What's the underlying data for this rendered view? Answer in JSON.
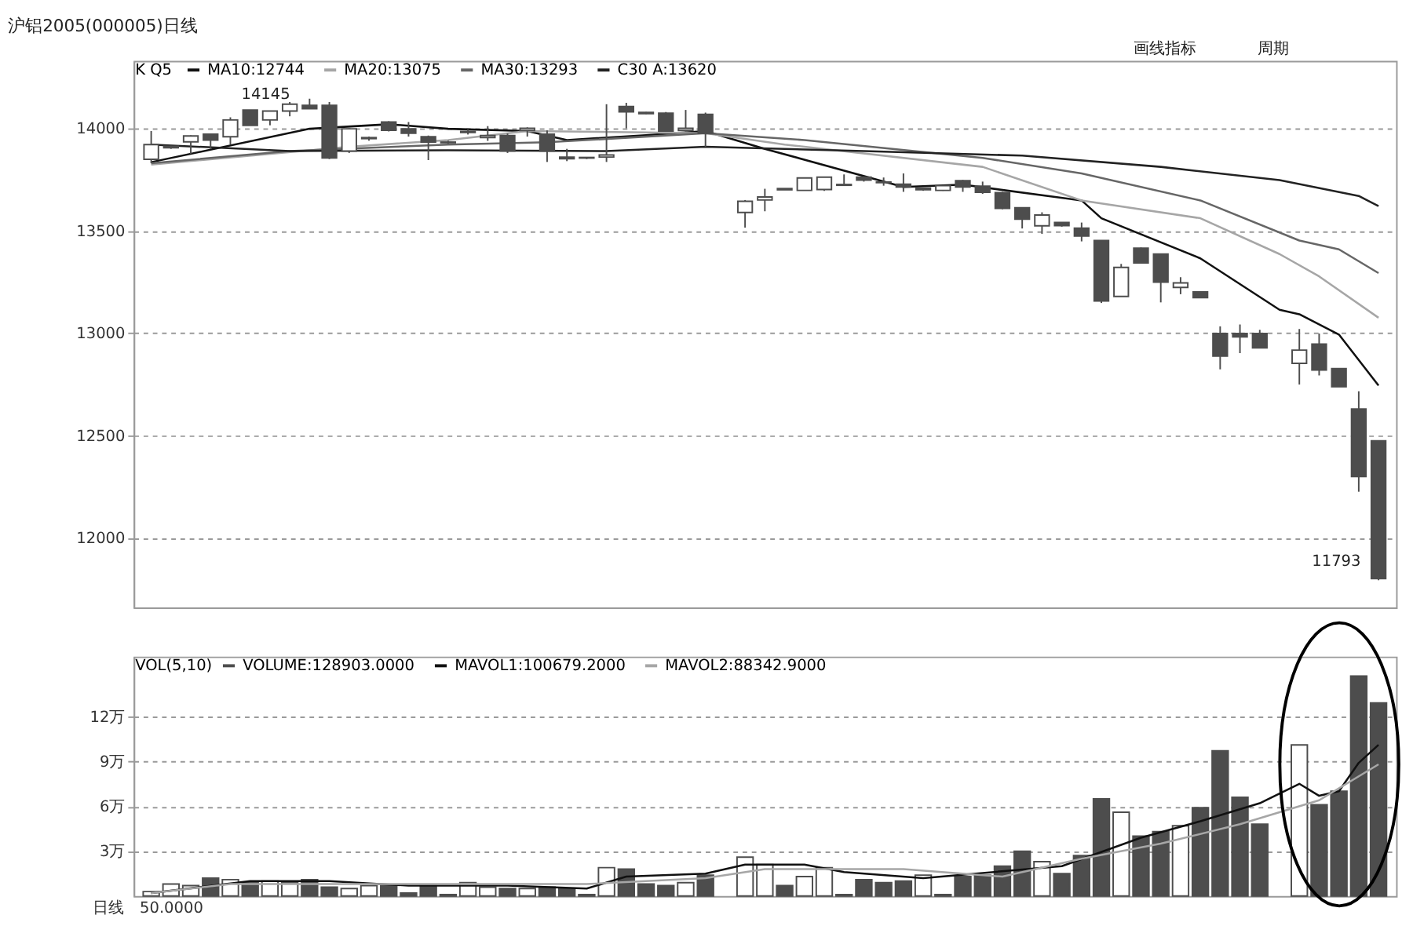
{
  "chart_data": [
    {
      "type": "candlestick",
      "title": "沪铝2005(000005)日线",
      "legend_title": "K  Q5",
      "legend": "top left",
      "grid": "y",
      "tick_labels": "y",
      "color": "#4d4d4d",
      "categories": [
        null,
        null,
        null,
        null,
        null,
        null,
        null,
        null,
        null,
        null,
        null,
        null,
        null,
        null,
        null,
        null,
        null,
        null,
        null,
        null,
        null,
        null,
        null,
        null,
        null,
        null,
        null,
        null,
        null,
        null,
        null,
        null,
        null,
        null,
        null,
        null,
        null,
        null,
        null,
        null,
        null,
        null,
        null,
        null,
        null,
        null,
        null,
        null,
        null,
        null,
        null,
        null,
        null,
        null,
        null,
        null,
        null,
        null,
        null,
        null,
        null,
        null,
        null
      ],
      "ohlc": [
        [
          13849,
          13987,
          13830,
          13921
        ],
        [
          13905,
          13915,
          13900,
          13912
        ],
        [
          13934,
          13966,
          13876,
          13963
        ],
        [
          13972,
          13975,
          13900,
          13943
        ],
        [
          13959,
          14054,
          13921,
          14041
        ],
        [
          14090,
          14090,
          14015,
          14015
        ],
        [
          14041,
          14085,
          14015,
          14085
        ],
        [
          14085,
          14129,
          14059,
          14118
        ],
        [
          14113,
          14145,
          14096,
          14096
        ],
        [
          14113,
          14129,
          13850,
          13856
        ],
        [
          13889,
          14000,
          13880,
          13998
        ],
        [
          13950,
          13960,
          13940,
          13955
        ],
        [
          14031,
          14035,
          13985,
          13991
        ],
        [
          13998,
          14031,
          13960,
          13976
        ],
        [
          13959,
          13965,
          13845,
          13933
        ],
        [
          13930,
          13940,
          13925,
          13933
        ],
        [
          13980,
          13995,
          13970,
          13985
        ],
        [
          13955,
          14011,
          13939,
          13965
        ],
        [
          13965,
          13975,
          13880,
          13889
        ],
        [
          13990,
          14005,
          13960,
          14000
        ],
        [
          13972,
          13990,
          13836,
          13889
        ],
        [
          13860,
          13900,
          13840,
          13852
        ],
        [
          13855,
          13860,
          13850,
          13858
        ],
        [
          13860,
          14118,
          13836,
          13870
        ],
        [
          14107,
          14125,
          14000,
          14081
        ],
        [
          14078,
          14080,
          14070,
          14072
        ],
        [
          14074,
          14080,
          13985,
          13987
        ],
        [
          13990,
          14090,
          13985,
          14000
        ],
        [
          14068,
          14077,
          13910,
          13976
        ],
        null,
        [
          13589,
          13650,
          13515,
          13644
        ],
        [
          13650,
          13705,
          13595,
          13665
        ],
        [
          13706,
          13706,
          13700,
          13700
        ],
        [
          13697,
          13760,
          13697,
          13758
        ],
        [
          13701,
          13765,
          13695,
          13762
        ],
        [
          13722,
          13775,
          13720,
          13726
        ],
        [
          13762,
          13765,
          13740,
          13747
        ],
        [
          13738,
          13760,
          13720,
          13735
        ],
        [
          13727,
          13780,
          13690,
          13714
        ],
        [
          13700,
          13710,
          13695,
          13708
        ],
        [
          13697,
          13722,
          13695,
          13720
        ],
        [
          13745,
          13748,
          13690,
          13714
        ],
        [
          13718,
          13740,
          13680,
          13688
        ],
        [
          13686,
          13690,
          13605,
          13609
        ],
        [
          13612,
          13615,
          13511,
          13557
        ],
        [
          13524,
          13590,
          13485,
          13577
        ],
        [
          13540,
          13540,
          13520,
          13525
        ],
        [
          13513,
          13540,
          13448,
          13474
        ],
        [
          13452,
          13452,
          13147,
          13157
        ],
        [
          13179,
          13338,
          13179,
          13321
        ],
        [
          13415,
          13418,
          13340,
          13343
        ],
        [
          13386,
          13386,
          13150,
          13249
        ],
        [
          13223,
          13273,
          13190,
          13245
        ],
        [
          13201,
          13201,
          13173,
          13173
        ],
        [
          12998,
          13033,
          12823,
          12888
        ],
        [
          12998,
          13042,
          12902,
          12982
        ],
        [
          12998,
          13016,
          12928,
          12928
        ],
        null,
        [
          12852,
          13020,
          12749,
          12917
        ],
        [
          12946,
          12998,
          12793,
          12820
        ],
        [
          12826,
          12826,
          12738,
          12738
        ],
        [
          12629,
          12716,
          12225,
          12299
        ],
        [
          12474,
          12474,
          11793,
          11801
        ]
      ],
      "ylim": [
        11660,
        14330
      ],
      "yticks": [
        12000,
        12500,
        13000,
        13500,
        14000
      ],
      "series": [
        {
          "name": "MA10:12744",
          "type": "line",
          "color": "#111111",
          "values": [
            13835,
            null,
            null,
            null,
            null,
            null,
            null,
            null,
            13998,
            null,
            null,
            null,
            14020,
            null,
            null,
            13998,
            null,
            null,
            null,
            13987,
            null,
            13943,
            null,
            null,
            null,
            13967,
            null,
            null,
            13987,
            null,
            null,
            13900,
            null,
            null,
            null,
            null,
            null,
            null,
            13714,
            null,
            null,
            13725,
            null,
            null,
            null,
            null,
            null,
            13648,
            13561,
            null,
            null,
            null,
            null,
            13365,
            null,
            null,
            null,
            13114,
            13092,
            null,
            12993,
            null,
            12744
          ]
        },
        {
          "name": "MA20:13075",
          "type": "line",
          "color": "#a6a6a6",
          "values": [
            13823,
            null,
            null,
            null,
            null,
            null,
            null,
            null,
            null,
            null,
            13910,
            null,
            null,
            null,
            null,
            13943,
            null,
            null,
            null,
            13987,
            null,
            null,
            null,
            null,
            null,
            13980,
            null,
            null,
            13976,
            null,
            null,
            null,
            13921,
            null,
            null,
            null,
            null,
            null,
            null,
            null,
            null,
            null,
            13812,
            null,
            null,
            null,
            null,
            13648,
            null,
            null,
            null,
            null,
            null,
            13561,
            null,
            null,
            null,
            13386,
            null,
            13277,
            null,
            null,
            13075
          ]
        },
        {
          "name": "MA30:13293",
          "type": "line",
          "color": "#666666",
          "values": [
            13830,
            null,
            null,
            null,
            null,
            null,
            null,
            13889,
            null,
            null,
            null,
            null,
            null,
            null,
            null,
            13921,
            null,
            null,
            null,
            null,
            13932,
            null,
            null,
            null,
            null,
            null,
            null,
            null,
            13976,
            null,
            null,
            null,
            null,
            13943,
            null,
            null,
            null,
            null,
            null,
            null,
            null,
            null,
            13856,
            null,
            null,
            null,
            null,
            13780,
            null,
            null,
            null,
            null,
            null,
            13648,
            null,
            null,
            null,
            null,
            13452,
            null,
            13409,
            null,
            13293
          ]
        },
        {
          "name": "C30 A:13620",
          "type": "line",
          "color": "#222222",
          "values": [
            13921,
            null,
            null,
            null,
            null,
            null,
            null,
            13889,
            null,
            null,
            null,
            null,
            null,
            null,
            null,
            13893,
            null,
            null,
            null,
            null,
            null,
            null,
            null,
            13889,
            null,
            null,
            null,
            null,
            13910,
            null,
            null,
            null,
            null,
            null,
            null,
            null,
            13889,
            null,
            null,
            null,
            null,
            null,
            null,
            null,
            13867,
            null,
            null,
            null,
            null,
            null,
            null,
            13812,
            null,
            null,
            null,
            null,
            null,
            13747,
            null,
            null,
            null,
            13670,
            13620
          ]
        }
      ],
      "annotations": [
        "14145",
        "11793",
        "画线指标",
        "周期"
      ]
    },
    {
      "type": "bar",
      "legend_title": "VOL(5,10)",
      "legend": "top left",
      "grid": "y",
      "tick_labels": "y",
      "categories": [
        null,
        null,
        null,
        null,
        null,
        null,
        null,
        null,
        null,
        null,
        null,
        null,
        null,
        null,
        null,
        null,
        null,
        null,
        null,
        null,
        null,
        null,
        null,
        null,
        null,
        null,
        null,
        null,
        null,
        null,
        null,
        null,
        null,
        null,
        null,
        null,
        null,
        null,
        null,
        null,
        null,
        null,
        null,
        null,
        null,
        null,
        null,
        null,
        null,
        null,
        null,
        null,
        null,
        null,
        null,
        null,
        null,
        null,
        null,
        null,
        null,
        null,
        null
      ],
      "ylim": [
        0,
        16
      ],
      "yticks": [
        {
          "value": 3,
          "label": "3万"
        },
        {
          "value": 6,
          "label": "6万"
        },
        {
          "value": 9,
          "label": "9万"
        },
        {
          "value": 12,
          "label": "12万"
        }
      ],
      "series": [
        {
          "name": "VOLUME:128903.0000",
          "type": "bar",
          "color": "#4d4d4d",
          "values": [
            0.3,
            0.8,
            0.7,
            1.2,
            1.1,
            0.9,
            1.0,
            0.9,
            1.1,
            0.6,
            0.5,
            0.7,
            0.7,
            0.2,
            0.7,
            0.1,
            0.9,
            0.6,
            0.5,
            0.5,
            0.6,
            0.5,
            0.1,
            1.9,
            1.8,
            0.8,
            0.7,
            0.9,
            1.4,
            null,
            2.6,
            2.1,
            0.7,
            1.3,
            1.9,
            0.1,
            1.1,
            0.9,
            1.0,
            1.4,
            0.1,
            1.3,
            1.4,
            2.0,
            3.0,
            2.3,
            1.5,
            2.7,
            6.5,
            5.6,
            4.0,
            4.3,
            4.7,
            5.9,
            9.7,
            6.6,
            4.8,
            null,
            10.1,
            6.1,
            7.0,
            14.7,
            12.9
          ],
          "colors": [
            "#ffffff",
            "#ffffff",
            "#ffffff",
            "#4d4d4d",
            "#ffffff",
            "#4d4d4d",
            "#ffffff",
            "#ffffff",
            "#4d4d4d",
            "#4d4d4d",
            "#ffffff",
            "#ffffff",
            "#4d4d4d",
            "#4d4d4d",
            "#4d4d4d",
            "#ffffff",
            "#ffffff",
            "#ffffff",
            "#4d4d4d",
            "#ffffff",
            "#4d4d4d",
            "#4d4d4d",
            "#ffffff",
            "#ffffff",
            "#4d4d4d",
            "#4d4d4d",
            "#4d4d4d",
            "#ffffff",
            "#4d4d4d",
            "#ffffff",
            "#ffffff",
            "#ffffff",
            "#4d4d4d",
            "#ffffff",
            "#ffffff",
            "#ffffff",
            "#4d4d4d",
            "#4d4d4d",
            "#4d4d4d",
            "#ffffff",
            "#ffffff",
            "#4d4d4d",
            "#4d4d4d",
            "#4d4d4d",
            "#4d4d4d",
            "#ffffff",
            "#4d4d4d",
            "#4d4d4d",
            "#4d4d4d",
            "#ffffff",
            "#4d4d4d",
            "#4d4d4d",
            "#ffffff",
            "#4d4d4d",
            "#4d4d4d",
            "#4d4d4d",
            "#4d4d4d",
            "#ffffff",
            "#ffffff",
            "#4d4d4d",
            "#4d4d4d",
            "#4d4d4d",
            "#4d4d4d"
          ]
        },
        {
          "name": "MAVOL1:100679.2000",
          "type": "line",
          "color": "#111111",
          "values": [
            0.2,
            null,
            null,
            null,
            null,
            1.0,
            null,
            null,
            null,
            1.0,
            null,
            null,
            null,
            0.7,
            null,
            null,
            null,
            null,
            0.7,
            null,
            null,
            null,
            0.5,
            null,
            1.3,
            null,
            null,
            null,
            1.5,
            null,
            2.1,
            null,
            null,
            2.1,
            null,
            1.6,
            null,
            null,
            null,
            1.2,
            null,
            null,
            null,
            null,
            null,
            null,
            2.0,
            null,
            null,
            null,
            3.9,
            null,
            null,
            5.0,
            null,
            null,
            6.2,
            null,
            7.5,
            6.7,
            7.0,
            8.9,
            10.1
          ]
        },
        {
          "name": "MAVOL2:88342.9000",
          "type": "line",
          "color": "#a6a6a6",
          "values": [
            0.2,
            null,
            null,
            null,
            0.8,
            null,
            null,
            null,
            null,
            null,
            null,
            null,
            0.8,
            null,
            null,
            null,
            null,
            null,
            null,
            null,
            0.8,
            null,
            0.8,
            null,
            null,
            null,
            null,
            null,
            1.2,
            null,
            null,
            1.8,
            null,
            null,
            null,
            null,
            null,
            null,
            1.8,
            null,
            null,
            null,
            null,
            1.3,
            null,
            null,
            null,
            2.5,
            null,
            null,
            null,
            3.5,
            null,
            null,
            null,
            4.8,
            null,
            null,
            null,
            6.4,
            null,
            null,
            8.8
          ]
        }
      ],
      "annotations": [
        "日线",
        "50.0000"
      ]
    }
  ]
}
